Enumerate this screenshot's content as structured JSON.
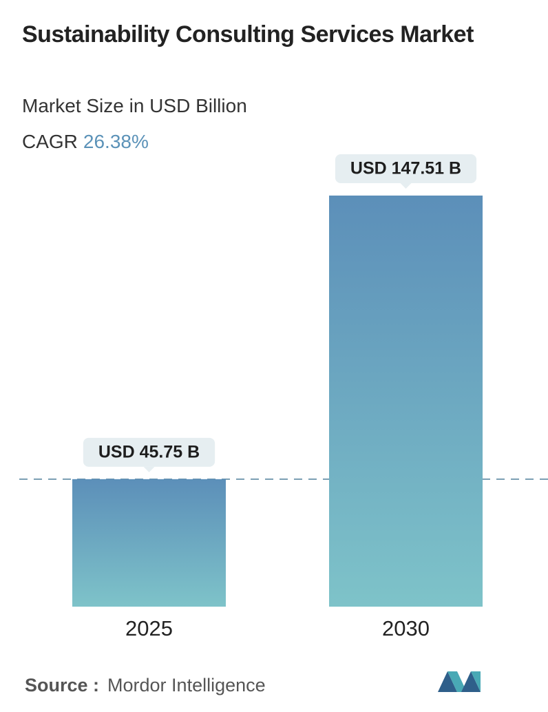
{
  "chart_data": {
    "type": "bar",
    "title": "Sustainability Consulting Services Market",
    "subtitle": "Market Size in USD Billion",
    "cagr_label": "CAGR",
    "cagr": "26.38%",
    "categories": [
      "2025",
      "2030"
    ],
    "values": [
      45.75,
      147.51
    ],
    "value_labels": [
      "USD 45.75 B",
      "USD 147.51 B"
    ],
    "color_top": "#5c8fb9",
    "color_bottom": "#7ec3c9",
    "source_label": "Source :",
    "source": "Mordor Intelligence"
  }
}
